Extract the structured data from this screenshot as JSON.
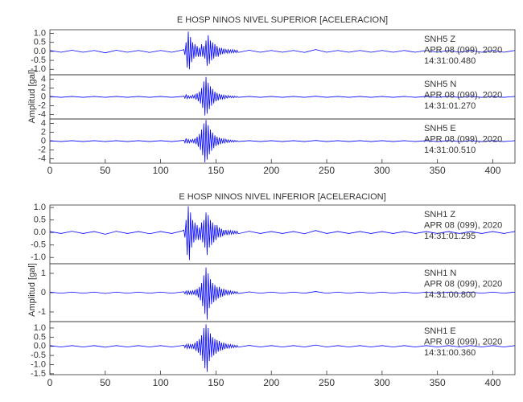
{
  "chart_data": [
    {
      "type": "line",
      "title": "E HOSP NINOS NIVEL SUPERIOR [ACELERACION]",
      "y_label": "Amplitud [gal]",
      "color": "#0000ff",
      "xlim": [
        0,
        420
      ],
      "xticks": [
        0,
        50,
        100,
        150,
        200,
        250,
        300,
        350,
        400
      ],
      "x": [
        0,
        10,
        20,
        30,
        40,
        50,
        60,
        70,
        80,
        90,
        100,
        110,
        120,
        121,
        122,
        123,
        124,
        125,
        126,
        127,
        128,
        129,
        130,
        131,
        132,
        133,
        134,
        135,
        136,
        137,
        138,
        139,
        140,
        141,
        142,
        143,
        144,
        145,
        146,
        147,
        148,
        149,
        150,
        151,
        152,
        153,
        154,
        155,
        156,
        157,
        158,
        159,
        160,
        161,
        162,
        163,
        164,
        165,
        166,
        167,
        168,
        169,
        170,
        180,
        190,
        200,
        210,
        220,
        230,
        240,
        250,
        260,
        270,
        280,
        290,
        300,
        310,
        320,
        330,
        340,
        350,
        360,
        370,
        380,
        390,
        400,
        410,
        420
      ],
      "panels": [
        {
          "station": "SNH5   Z",
          "date": "APR 08 (099), 2020",
          "time": "14:31:00.480",
          "ylim": [
            -1.3,
            1.2
          ],
          "yticks": [
            {
              "value": 1,
              "label": "1.0"
            },
            0.5,
            {
              "value": 0,
              "label": "0.0"
            },
            -0.5,
            {
              "value": -1,
              "label": "-1.0"
            }
          ],
          "values": [
            0.05,
            -0.05,
            0.06,
            -0.05,
            0.05,
            -0.08,
            0.06,
            -0.05,
            0.05,
            -0.06,
            0.05,
            -0.05,
            0.08,
            0.1,
            -0.2,
            0.5,
            -0.9,
            1.1,
            -1.0,
            0.8,
            -0.6,
            0.5,
            -0.4,
            0.4,
            -0.3,
            0.3,
            -0.3,
            0.2,
            -0.3,
            0.4,
            -0.3,
            0.3,
            -0.4,
            0.6,
            -0.8,
            0.9,
            -0.7,
            0.6,
            -0.5,
            0.5,
            -0.4,
            0.4,
            -0.3,
            0.3,
            -0.3,
            0.2,
            -0.2,
            0.2,
            -0.15,
            0.15,
            -0.1,
            0.1,
            -0.1,
            0.1,
            -0.1,
            0.08,
            -0.08,
            0.1,
            -0.08,
            0.07,
            -0.07,
            0.06,
            -0.06,
            0.06,
            -0.05,
            0.05,
            -0.05,
            0.05,
            -0.06,
            0.1,
            -0.05,
            0.05,
            -0.05,
            0.05,
            -0.05,
            0.05,
            -0.05,
            0.05,
            -0.05,
            0.05,
            -0.05,
            0.05,
            -0.05,
            0.05,
            -0.05,
            0.05,
            -0.05,
            0.05
          ]
        },
        {
          "station": "SNH5   N",
          "date": "APR 08 (099), 2020",
          "time": "14:31:01.270",
          "ylim": [
            -5,
            5
          ],
          "yticks": [
            4,
            2,
            0,
            -2,
            -4
          ],
          "values": [
            0.1,
            -0.1,
            0.1,
            -0.1,
            0.1,
            -0.1,
            0.1,
            -0.1,
            0.1,
            -0.1,
            0.1,
            -0.1,
            0.1,
            0.2,
            -0.3,
            0.5,
            -0.4,
            0.3,
            -0.3,
            0.2,
            -0.3,
            0.4,
            -0.3,
            0.5,
            -0.6,
            0.8,
            -1.0,
            1.2,
            -1.5,
            2.0,
            -2.5,
            3.5,
            -4.2,
            4.5,
            -3.8,
            3.2,
            -2.8,
            2.4,
            -2.0,
            1.8,
            -1.5,
            1.2,
            -1.0,
            0.9,
            -0.8,
            0.7,
            -0.6,
            0.5,
            -0.5,
            0.4,
            -0.4,
            0.3,
            -0.3,
            0.3,
            -0.2,
            0.2,
            -0.2,
            0.2,
            -0.2,
            0.15,
            -0.15,
            0.1,
            -0.1,
            0.1,
            -0.1,
            0.1,
            -0.1,
            0.1,
            -0.1,
            0.15,
            -0.1,
            0.1,
            -0.1,
            0.1,
            -0.1,
            0.1,
            -0.1,
            0.1,
            -0.1,
            0.1,
            -0.1,
            0.1,
            -0.1,
            0.1,
            -0.1,
            0.1,
            -0.1,
            0.1
          ]
        },
        {
          "station": "SNH5   E",
          "date": "APR 08 (099), 2020",
          "time": "14:31:00.510",
          "ylim": [
            -5,
            5
          ],
          "yticks": [
            4,
            2,
            0,
            -2,
            -4
          ],
          "values": [
            0.1,
            -0.1,
            0.1,
            -0.1,
            0.1,
            -0.1,
            0.1,
            -0.1,
            0.1,
            -0.1,
            0.1,
            -0.1,
            0.15,
            0.2,
            -0.4,
            0.6,
            -0.5,
            0.4,
            -0.4,
            0.3,
            -0.3,
            0.4,
            -0.4,
            0.6,
            -0.7,
            1.0,
            -1.3,
            1.6,
            -2.0,
            2.6,
            -3.2,
            4.0,
            -4.8,
            4.8,
            -4.2,
            3.6,
            -3.0,
            2.6,
            -2.2,
            1.9,
            -1.6,
            1.3,
            -1.1,
            1.0,
            -0.9,
            0.8,
            -0.7,
            0.6,
            -0.5,
            0.5,
            -0.4,
            0.4,
            -0.3,
            0.3,
            -0.3,
            0.25,
            -0.2,
            0.2,
            -0.2,
            0.15,
            -0.15,
            0.1,
            -0.1,
            0.1,
            -0.1,
            0.1,
            -0.1,
            0.1,
            -0.1,
            0.15,
            -0.1,
            0.1,
            -0.1,
            0.1,
            -0.1,
            0.1,
            -0.1,
            0.1,
            -0.1,
            0.1,
            -0.1,
            0.1,
            -0.1,
            0.1,
            -0.1,
            0.1,
            -0.1,
            0.1
          ]
        }
      ]
    },
    {
      "type": "line",
      "title": "E HOSP NINOS NIVEL INFERIOR [ACELERACION]",
      "y_label": "Amplitud [gal]",
      "color": "#0000ff",
      "xlim": [
        0,
        420
      ],
      "xticks": [
        0,
        50,
        100,
        150,
        200,
        250,
        300,
        350,
        400
      ],
      "x": [
        0,
        10,
        20,
        30,
        40,
        50,
        60,
        70,
        80,
        90,
        100,
        110,
        120,
        121,
        122,
        123,
        124,
        125,
        126,
        127,
        128,
        129,
        130,
        131,
        132,
        133,
        134,
        135,
        136,
        137,
        138,
        139,
        140,
        141,
        142,
        143,
        144,
        145,
        146,
        147,
        148,
        149,
        150,
        151,
        152,
        153,
        154,
        155,
        156,
        157,
        158,
        159,
        160,
        161,
        162,
        163,
        164,
        165,
        166,
        167,
        168,
        169,
        170,
        180,
        190,
        200,
        210,
        220,
        230,
        240,
        250,
        260,
        270,
        280,
        290,
        300,
        310,
        320,
        330,
        340,
        350,
        360,
        370,
        380,
        390,
        400,
        410,
        420
      ],
      "panels": [
        {
          "station": "SNH1   Z",
          "date": "APR 08 (099), 2020",
          "time": "14:31:01.295",
          "ylim": [
            -1.25,
            1.1
          ],
          "yticks": [
            {
              "value": 1,
              "label": "1.0"
            },
            0.5,
            {
              "value": 0,
              "label": "0.0"
            },
            -0.5,
            {
              "value": -1,
              "label": "-1.0"
            }
          ],
          "values": [
            0.04,
            -0.04,
            0.05,
            -0.04,
            0.04,
            -0.07,
            0.05,
            -0.04,
            0.04,
            -0.05,
            0.04,
            -0.04,
            0.07,
            0.1,
            -0.2,
            0.5,
            -0.9,
            1.05,
            -1.1,
            0.8,
            -0.6,
            0.5,
            -0.4,
            0.4,
            -0.3,
            0.3,
            -0.3,
            0.2,
            -0.3,
            0.4,
            -0.4,
            0.5,
            -0.6,
            0.8,
            -0.9,
            0.7,
            -0.6,
            0.5,
            -0.5,
            0.4,
            -0.4,
            0.3,
            -0.3,
            0.3,
            -0.2,
            0.2,
            -0.2,
            0.15,
            -0.15,
            0.1,
            -0.1,
            0.1,
            -0.1,
            0.08,
            -0.08,
            0.08,
            -0.07,
            0.07,
            -0.06,
            0.06,
            -0.05,
            0.05,
            -0.05,
            0.05,
            -0.04,
            0.04,
            -0.04,
            0.04,
            -0.05,
            0.08,
            -0.04,
            0.04,
            -0.04,
            0.04,
            -0.04,
            0.04,
            -0.04,
            0.04,
            -0.04,
            0.04,
            -0.04,
            0.04,
            -0.04,
            0.04,
            -0.04,
            0.04,
            -0.04,
            0.04
          ]
        },
        {
          "station": "SNH1   N",
          "date": "APR 08 (099), 2020",
          "time": "14:31:00.800",
          "ylim": [
            -1.5,
            1.5
          ],
          "yticks": [
            1,
            0,
            -1
          ],
          "values": [
            0.03,
            -0.03,
            0.03,
            -0.03,
            0.03,
            -0.04,
            0.03,
            -0.03,
            0.03,
            -0.03,
            0.03,
            -0.03,
            0.04,
            0.05,
            -0.06,
            0.08,
            -0.1,
            0.1,
            -0.08,
            0.08,
            -0.1,
            0.1,
            -0.1,
            0.15,
            -0.15,
            0.2,
            -0.25,
            0.3,
            -0.4,
            0.5,
            -0.7,
            0.9,
            -1.1,
            1.3,
            -1.4,
            1.0,
            -0.8,
            0.7,
            -0.6,
            0.5,
            -0.5,
            0.4,
            -0.4,
            0.3,
            -0.3,
            0.3,
            -0.25,
            0.2,
            -0.2,
            0.2,
            -0.15,
            0.15,
            -0.1,
            0.1,
            -0.1,
            0.1,
            -0.08,
            0.08,
            -0.06,
            0.06,
            -0.05,
            0.05,
            -0.05,
            0.04,
            -0.03,
            0.03,
            -0.03,
            0.03,
            -0.03,
            0.06,
            -0.03,
            0.03,
            -0.03,
            0.03,
            -0.03,
            0.03,
            -0.03,
            0.03,
            -0.03,
            0.03,
            -0.03,
            0.03,
            -0.03,
            0.03,
            -0.03,
            0.03,
            -0.03,
            0.03
          ]
        },
        {
          "station": "SNH1   E",
          "date": "APR 08 (099), 2020",
          "time": "14:31:00.360",
          "ylim": [
            -1.55,
            1.35
          ],
          "yticks": [
            {
              "value": 1,
              "label": "1.0"
            },
            0.5,
            {
              "value": 0,
              "label": "0.0"
            },
            -0.5,
            {
              "value": -1,
              "label": "-1.0"
            },
            -1.5
          ],
          "values": [
            0.04,
            -0.04,
            0.04,
            -0.04,
            0.04,
            -0.05,
            0.04,
            -0.04,
            0.04,
            -0.04,
            0.04,
            -0.04,
            0.05,
            0.06,
            -0.08,
            0.1,
            -0.12,
            0.12,
            -0.1,
            0.1,
            -0.12,
            0.12,
            -0.15,
            0.2,
            -0.25,
            0.3,
            -0.35,
            0.4,
            -0.5,
            0.6,
            -0.8,
            1.0,
            -1.2,
            1.2,
            -1.4,
            1.0,
            -0.8,
            0.7,
            -0.6,
            0.5,
            -0.5,
            0.4,
            -0.4,
            0.35,
            -0.3,
            0.3,
            -0.25,
            0.2,
            -0.2,
            0.2,
            -0.15,
            0.15,
            -0.12,
            0.1,
            -0.1,
            0.1,
            -0.08,
            0.08,
            -0.07,
            0.06,
            -0.06,
            0.05,
            -0.05,
            0.05,
            -0.04,
            0.04,
            -0.04,
            0.04,
            -0.04,
            0.07,
            -0.04,
            0.04,
            -0.04,
            0.04,
            -0.04,
            0.04,
            -0.04,
            0.04,
            -0.04,
            0.04,
            -0.04,
            0.04,
            -0.04,
            0.04,
            -0.04,
            0.04,
            -0.04,
            0.04
          ]
        }
      ]
    }
  ]
}
